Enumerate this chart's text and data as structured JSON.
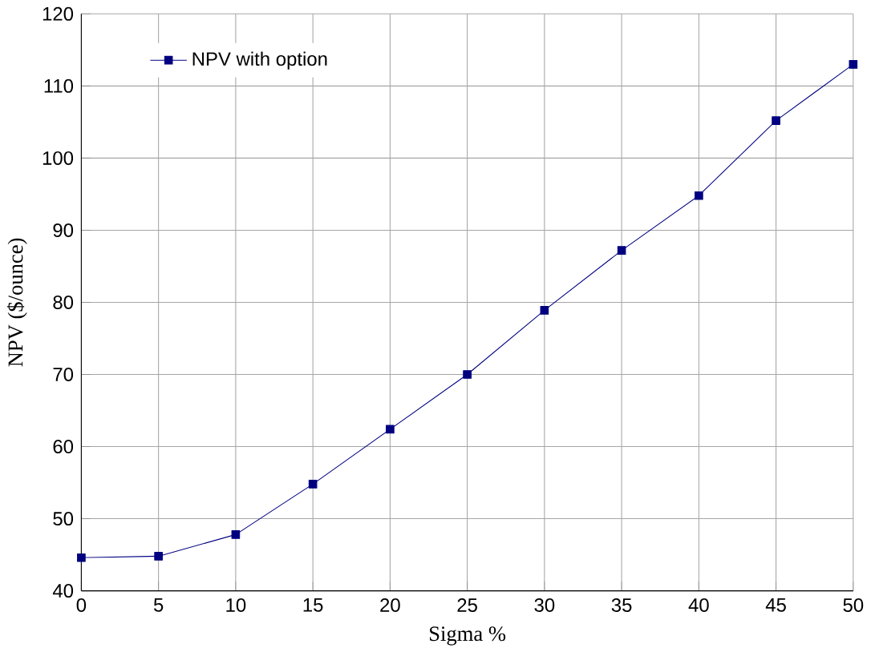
{
  "chart_data": {
    "type": "line",
    "xlabel": "Sigma %",
    "ylabel": "NPV ($/ounce)",
    "x": [
      0,
      5,
      10,
      15,
      20,
      25,
      30,
      35,
      40,
      45,
      50
    ],
    "series": [
      {
        "name": "NPV with option",
        "color": "#000080",
        "values": [
          44.6,
          44.8,
          47.8,
          54.8,
          62.4,
          70,
          78.9,
          87.2,
          94.8,
          105.2,
          113
        ]
      }
    ],
    "xlim": [
      0,
      50
    ],
    "xticks": [
      0,
      5,
      10,
      15,
      20,
      25,
      30,
      35,
      40,
      45,
      50
    ],
    "ylim": [
      40,
      120
    ],
    "yticks": [
      40,
      50,
      60,
      70,
      80,
      90,
      100,
      110,
      120
    ],
    "grid": true,
    "legend": "top left",
    "marker": "square",
    "line_style": "solid"
  }
}
